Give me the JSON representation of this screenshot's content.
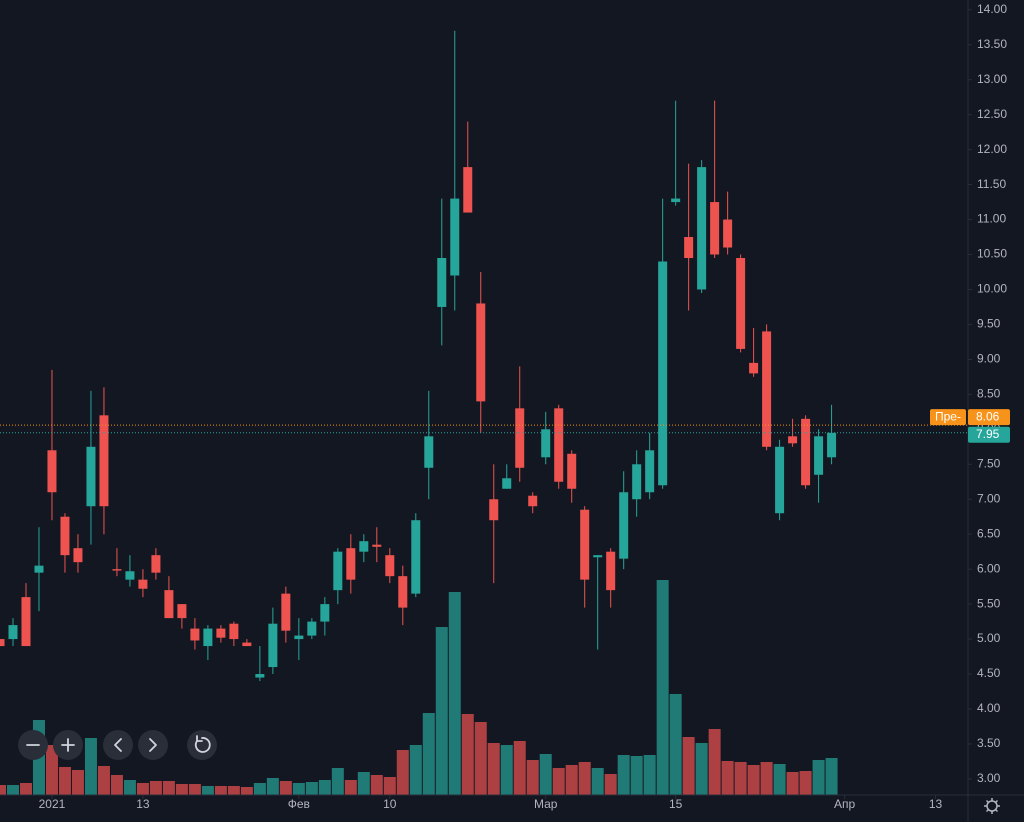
{
  "chart_data": {
    "type": "candlestick",
    "up_color": "#26a69a",
    "down_color": "#ef5350",
    "xlim": [
      0,
      74.5
    ],
    "x_ticks": [
      {
        "value": 4,
        "label": "2021"
      },
      {
        "value": 11,
        "label": "13"
      },
      {
        "value": 23,
        "label": "Фев"
      },
      {
        "value": 30,
        "label": "10"
      },
      {
        "value": 42,
        "label": "Мар"
      },
      {
        "value": 52,
        "label": "15"
      },
      {
        "value": 65,
        "label": "Апр"
      },
      {
        "value": 72,
        "label": "13"
      }
    ],
    "ylim": [
      2.77,
      14.14
    ],
    "yticks": [
      {
        "value": 3,
        "label": "3.00"
      },
      {
        "value": 3.5,
        "label": "3.50"
      },
      {
        "value": 4,
        "label": "4.00"
      },
      {
        "value": 4.5,
        "label": "4.50"
      },
      {
        "value": 5,
        "label": "5.00"
      },
      {
        "value": 5.5,
        "label": "5.50"
      },
      {
        "value": 6,
        "label": "6.00"
      },
      {
        "value": 6.5,
        "label": "6.50"
      },
      {
        "value": 7,
        "label": "7.00"
      },
      {
        "value": 7.5,
        "label": "7.50"
      },
      {
        "value": 8,
        "label": "8.00"
      },
      {
        "value": 8.5,
        "label": "8.50"
      },
      {
        "value": 9,
        "label": "9.00"
      },
      {
        "value": 9.5,
        "label": "9.50"
      },
      {
        "value": 10,
        "label": "10.00"
      },
      {
        "value": 10.5,
        "label": "10.50"
      },
      {
        "value": 11,
        "label": "11.00"
      },
      {
        "value": 11.5,
        "label": "11.50"
      },
      {
        "value": 12,
        "label": "12.00"
      },
      {
        "value": 12.5,
        "label": "12.50"
      },
      {
        "value": 13,
        "label": "13.00"
      },
      {
        "value": 13.5,
        "label": "13.50"
      },
      {
        "value": 14,
        "label": "14.00"
      }
    ],
    "volume_ylim": [
      0,
      795
    ],
    "open": [
      5.0,
      5.0,
      5.6,
      5.95,
      7.7,
      6.75,
      6.3,
      6.9,
      8.2,
      6.0,
      5.85,
      5.85,
      6.2,
      5.7,
      5.5,
      5.15,
      4.9,
      5.15,
      5.22,
      4.95,
      4.45,
      4.6,
      5.65,
      5.0,
      5.05,
      5.25,
      5.7,
      6.3,
      6.25,
      6.35,
      6.2,
      5.9,
      5.65,
      7.45,
      9.75,
      10.2,
      11.75,
      9.8,
      7.0,
      7.15,
      8.3,
      7.05,
      7.6,
      8.3,
      7.65,
      6.85,
      6.17,
      6.25,
      6.15,
      7.0,
      7.1,
      7.2,
      11.25,
      10.75,
      10.0,
      11.25,
      11.0,
      10.45,
      8.95,
      9.4,
      6.8,
      7.9,
      8.15,
      7.35,
      7.6
    ],
    "high": [
      5.0,
      5.3,
      5.8,
      6.6,
      8.85,
      6.8,
      6.5,
      8.55,
      8.6,
      6.3,
      6.2,
      6.0,
      6.3,
      5.9,
      5.5,
      5.3,
      5.2,
      5.2,
      5.25,
      5.0,
      4.9,
      5.45,
      5.75,
      5.3,
      5.3,
      5.6,
      6.3,
      6.5,
      6.5,
      6.6,
      6.3,
      6.05,
      6.8,
      8.55,
      11.3,
      13.7,
      12.4,
      10.25,
      7.5,
      7.5,
      8.9,
      7.1,
      8.25,
      8.35,
      7.7,
      6.9,
      6.2,
      6.3,
      7.4,
      7.7,
      7.95,
      11.3,
      12.7,
      11.8,
      11.85,
      12.7,
      11.4,
      10.5,
      9.45,
      9.5,
      7.85,
      8.15,
      8.2,
      8.0,
      8.35
    ],
    "low": [
      4.9,
      4.9,
      4.9,
      5.4,
      6.7,
      5.95,
      5.95,
      6.35,
      6.5,
      5.9,
      5.75,
      5.6,
      5.85,
      5.3,
      5.15,
      4.85,
      4.7,
      4.95,
      4.9,
      4.9,
      4.4,
      4.5,
      4.95,
      4.7,
      5.0,
      5.05,
      5.5,
      5.65,
      6.1,
      6.1,
      5.8,
      5.2,
      5.6,
      7.0,
      9.2,
      9.7,
      11.1,
      7.95,
      5.8,
      7.15,
      7.25,
      6.8,
      7.5,
      7.15,
      6.95,
      5.45,
      4.85,
      5.45,
      6.0,
      6.75,
      7.0,
      7.15,
      11.2,
      9.7,
      9.95,
      10.45,
      10.5,
      9.1,
      8.75,
      7.7,
      6.7,
      7.75,
      7.15,
      6.95,
      7.5
    ],
    "close": [
      4.9,
      5.2,
      4.9,
      6.05,
      7.1,
      6.2,
      6.1,
      7.75,
      6.9,
      5.98,
      5.97,
      5.72,
      5.95,
      5.3,
      5.3,
      4.98,
      5.15,
      5.02,
      5.0,
      4.9,
      4.5,
      5.22,
      5.12,
      5.05,
      5.25,
      5.5,
      6.25,
      5.85,
      6.4,
      6.32,
      5.9,
      5.45,
      6.7,
      7.9,
      10.45,
      11.3,
      11.1,
      8.4,
      6.7,
      7.3,
      7.45,
      6.9,
      8.0,
      7.25,
      7.15,
      5.85,
      6.2,
      5.7,
      7.1,
      7.5,
      7.7,
      10.4,
      11.3,
      10.45,
      11.75,
      10.5,
      10.6,
      9.15,
      8.8,
      7.75,
      7.75,
      7.8,
      7.2,
      7.9,
      7.95
    ],
    "volume": [
      10,
      10,
      12,
      75,
      50,
      28,
      25,
      57,
      29,
      20,
      15,
      12,
      14,
      14,
      11,
      11,
      9,
      9,
      9,
      8,
      12,
      17,
      14,
      12,
      13,
      15,
      27,
      15,
      23,
      20,
      18,
      45,
      50,
      82,
      168,
      203,
      81,
      73,
      52,
      50,
      54,
      35,
      41,
      27,
      30,
      33,
      27,
      21,
      40,
      39,
      40,
      215,
      101,
      58,
      52,
      66,
      34,
      33,
      30,
      33,
      31,
      23,
      24,
      35,
      37
    ],
    "price_lines": [
      {
        "value": 8.06,
        "tag": "Пре-",
        "color": "#f7931a"
      },
      {
        "value": 7.95,
        "color": "#26a69a"
      }
    ]
  }
}
